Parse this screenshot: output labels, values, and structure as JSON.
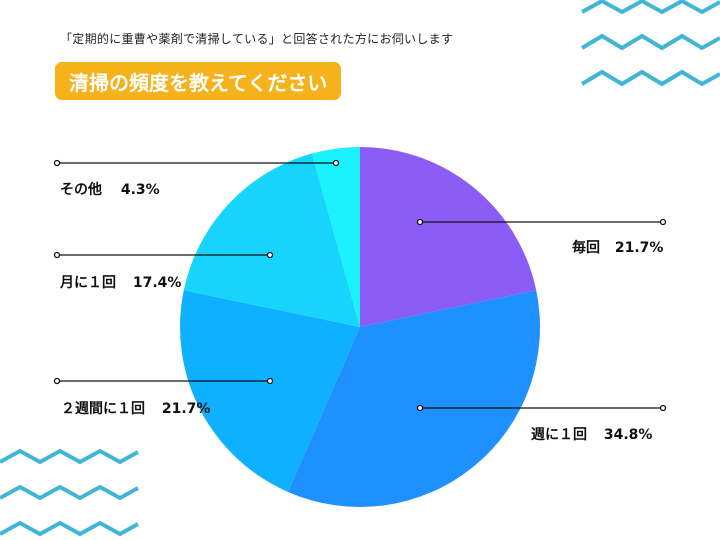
{
  "subtitle": "「定期的に重曹や薬剤で清掃している」と回答された方にお伺いします",
  "title": "清掃の頻度を教えてください",
  "colors": {
    "accent": "#F5B21B",
    "zigzag": "#3FB6D4"
  },
  "chart_data": {
    "type": "pie",
    "title": "清掃の頻度を教えてください",
    "start": "12 o'clock, clockwise",
    "slices": [
      {
        "key": "daily",
        "category": "毎回",
        "value": 21.7,
        "value_label": "21.7%",
        "color": "#8B5CF6"
      },
      {
        "key": "weekly",
        "category": "週に１回",
        "value": 34.8,
        "value_label": "34.8%",
        "color": "#1E90FF"
      },
      {
        "key": "biweekly",
        "category": "２週間に１回",
        "value": 21.7,
        "value_label": "21.7%",
        "color": "#0FB0FF"
      },
      {
        "key": "monthly",
        "category": "月に１回",
        "value": 17.4,
        "value_label": "17.4%",
        "color": "#16D4FB"
      },
      {
        "key": "other",
        "category": "その他",
        "value": 4.3,
        "value_label": "4.3%",
        "color": "#1AF2FF"
      }
    ]
  }
}
